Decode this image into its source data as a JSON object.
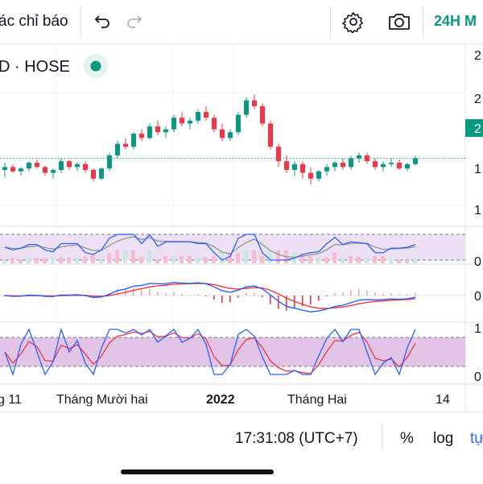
{
  "toolbar": {
    "indicators_label": "ác chỉ báo",
    "timeframe_label": "24H M"
  },
  "symbol": {
    "label": "D · HOSE",
    "status_color": "#089981"
  },
  "price_axis": {
    "labels": [
      "2",
      "2",
      "2",
      "1",
      "1"
    ],
    "current_label": "2"
  },
  "indicator_axis": {
    "rsi_label": "0",
    "macd_label": "0",
    "stoch_top_label": "1",
    "stoch_bottom_label": "0"
  },
  "time_axis": {
    "labels": [
      "g 11",
      "Tháng Mười hai",
      "2022",
      "Tháng Hai",
      "14"
    ]
  },
  "bottombar": {
    "time": "17:31:08 (UTC+7)",
    "percent": "%",
    "log": "log",
    "auto": "tự"
  },
  "colors": {
    "up": "#089981",
    "down": "#f23645",
    "accent": "#089981",
    "macd_line": "#2962ff",
    "signal_line": "#f23645",
    "band": "#9c27b0"
  },
  "chart_data": {
    "type": "candlestick",
    "title": "",
    "ylim": [
      0,
      100
    ],
    "price_scale": "unlabeled (axis labels cropped)",
    "candles": [
      [
        50,
        55,
        45,
        52
      ],
      [
        52,
        54,
        48,
        49
      ],
      [
        49,
        52,
        46,
        51
      ],
      [
        51,
        56,
        49,
        55
      ],
      [
        55,
        57,
        51,
        52
      ],
      [
        52,
        53,
        46,
        48
      ],
      [
        48,
        51,
        44,
        50
      ],
      [
        50,
        58,
        48,
        56
      ],
      [
        56,
        57,
        50,
        52
      ],
      [
        52,
        55,
        49,
        54
      ],
      [
        54,
        56,
        48,
        50
      ],
      [
        50,
        51,
        42,
        44
      ],
      [
        44,
        52,
        43,
        51
      ],
      [
        51,
        62,
        49,
        60
      ],
      [
        60,
        70,
        58,
        68
      ],
      [
        68,
        72,
        64,
        66
      ],
      [
        66,
        76,
        64,
        75
      ],
      [
        75,
        78,
        70,
        72
      ],
      [
        72,
        82,
        71,
        80
      ],
      [
        80,
        84,
        74,
        76
      ],
      [
        76,
        80,
        72,
        78
      ],
      [
        78,
        88,
        76,
        86
      ],
      [
        86,
        90,
        80,
        82
      ],
      [
        82,
        86,
        78,
        84
      ],
      [
        84,
        92,
        82,
        90
      ],
      [
        90,
        94,
        84,
        86
      ],
      [
        86,
        88,
        76,
        78
      ],
      [
        78,
        82,
        70,
        72
      ],
      [
        72,
        78,
        70,
        76
      ],
      [
        76,
        90,
        74,
        88
      ],
      [
        88,
        100,
        86,
        98
      ],
      [
        98,
        102,
        92,
        94
      ],
      [
        94,
        96,
        80,
        82
      ],
      [
        82,
        84,
        64,
        66
      ],
      [
        66,
        68,
        52,
        56
      ],
      [
        56,
        60,
        48,
        50
      ],
      [
        50,
        56,
        46,
        54
      ],
      [
        54,
        56,
        44,
        48
      ],
      [
        48,
        52,
        40,
        44
      ],
      [
        44,
        50,
        42,
        49
      ],
      [
        49,
        54,
        46,
        52
      ],
      [
        52,
        56,
        49,
        55
      ],
      [
        55,
        58,
        50,
        52
      ],
      [
        52,
        60,
        50,
        58
      ],
      [
        58,
        62,
        55,
        60
      ],
      [
        60,
        62,
        54,
        56
      ],
      [
        56,
        58,
        50,
        52
      ],
      [
        52,
        56,
        49,
        54
      ],
      [
        54,
        58,
        52,
        55
      ],
      [
        55,
        57,
        50,
        51
      ],
      [
        51,
        55,
        49,
        54
      ],
      [
        54,
        60,
        53,
        58
      ]
    ],
    "reference_level": 58
  }
}
